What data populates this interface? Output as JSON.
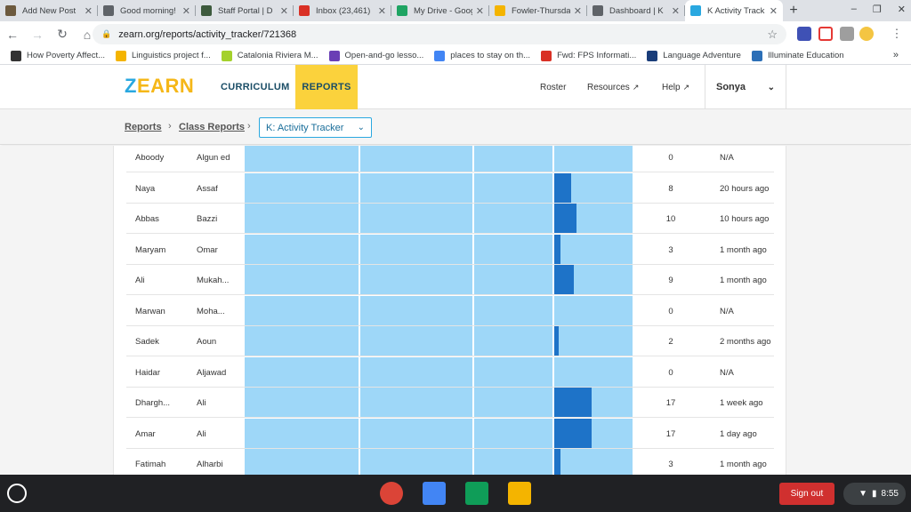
{
  "browser": {
    "tabs": [
      {
        "title": "Add New Post",
        "icon": "image-icon",
        "color": "#6d5a3e"
      },
      {
        "title": "Good morning!",
        "icon": "globe-icon",
        "color": "#5f6368"
      },
      {
        "title": "Staff Portal | D",
        "icon": "portal-icon",
        "color": "#3d5a3d"
      },
      {
        "title": "Inbox (23,461)",
        "icon": "gmail-icon",
        "color": "#d93025"
      },
      {
        "title": "My Drive - Goog",
        "icon": "drive-icon",
        "color": "#1fa463"
      },
      {
        "title": "Fowler-Thursda",
        "icon": "slides-icon",
        "color": "#f4b400"
      },
      {
        "title": "Dashboard | K",
        "icon": "dashboard-icon",
        "color": "#5f6368"
      },
      {
        "title": "K Activity Track",
        "icon": "zearn-icon",
        "color": "#2aa8e0"
      }
    ],
    "new_tab": "+",
    "url": "zearn.org/reports/activity_tracker/721368",
    "bookmarks": [
      {
        "label": "How Poverty Affect...",
        "icon": "bookmark-icon",
        "color": "#333333"
      },
      {
        "label": "Linguistics project f...",
        "icon": "folder-icon",
        "color": "#f4b400"
      },
      {
        "label": "Catalonia Riviera M...",
        "icon": "lime-icon",
        "color": "#a4d12c"
      },
      {
        "label": "Open-and-go lesso...",
        "icon": "m-icon",
        "color": "#6a3fb5"
      },
      {
        "label": "places to stay on th...",
        "icon": "google-icon",
        "color": "#4285f4"
      },
      {
        "label": "Fwd: FPS Informati...",
        "icon": "gmail-icon",
        "color": "#d93025"
      },
      {
        "label": "Language Adventure",
        "icon": "folder-icon",
        "color": "#1a3d7a"
      },
      {
        "label": "Illuminate Education",
        "icon": "illuminate-icon",
        "color": "#2c6fb7"
      }
    ],
    "bookmarks_more": "»"
  },
  "zearn": {
    "logo_z": "Z",
    "logo_rest": "EARN",
    "nav_curriculum": "CURRICULUM",
    "nav_reports": "REPORTS",
    "roster": "Roster",
    "resources": "Resources",
    "help": "Help",
    "user": "Sonya"
  },
  "breadcrumb": {
    "reports": "Reports",
    "class_reports": "Class Reports",
    "selected": "K: Activity Tracker"
  },
  "students": [
    {
      "first": "Aboody",
      "last": "Algun ed",
      "count": "0",
      "last_activity": "N/A",
      "progress": 0
    },
    {
      "first": "Naya",
      "last": "Assaf",
      "count": "8",
      "last_activity": "20 hours ago",
      "progress": 0.22
    },
    {
      "first": "Abbas",
      "last": "Bazzi",
      "count": "10",
      "last_activity": "10 hours ago",
      "progress": 0.28
    },
    {
      "first": "Maryam",
      "last": "Omar",
      "count": "3",
      "last_activity": "1 month ago",
      "progress": 0.08
    },
    {
      "first": "Ali",
      "last": "Mukah...",
      "count": "9",
      "last_activity": "1 month ago",
      "progress": 0.25
    },
    {
      "first": "Marwan",
      "last": "Moha...",
      "count": "0",
      "last_activity": "N/A",
      "progress": 0
    },
    {
      "first": "Sadek",
      "last": "Aoun",
      "count": "2",
      "last_activity": "2 months ago",
      "progress": 0.06
    },
    {
      "first": "Haidar",
      "last": "Aljawad",
      "count": "0",
      "last_activity": "N/A",
      "progress": 0
    },
    {
      "first": "Dhargh...",
      "last": "Ali",
      "count": "17",
      "last_activity": "1 week ago",
      "progress": 0.48
    },
    {
      "first": "Amar",
      "last": "Ali",
      "count": "17",
      "last_activity": "1 day ago",
      "progress": 0.48
    },
    {
      "first": "Fatimah",
      "last": "Alharbi",
      "count": "3",
      "last_activity": "1 month ago",
      "progress": 0.08
    }
  ],
  "shelf": {
    "sign_out": "Sign out",
    "time": "8:55",
    "apps": [
      {
        "name": "chrome-icon",
        "color": "#db4437"
      },
      {
        "name": "docs-icon",
        "color": "#4285f4"
      },
      {
        "name": "sheets-icon",
        "color": "#0f9d58"
      },
      {
        "name": "drive-icon",
        "color": "#f4b400"
      }
    ]
  }
}
